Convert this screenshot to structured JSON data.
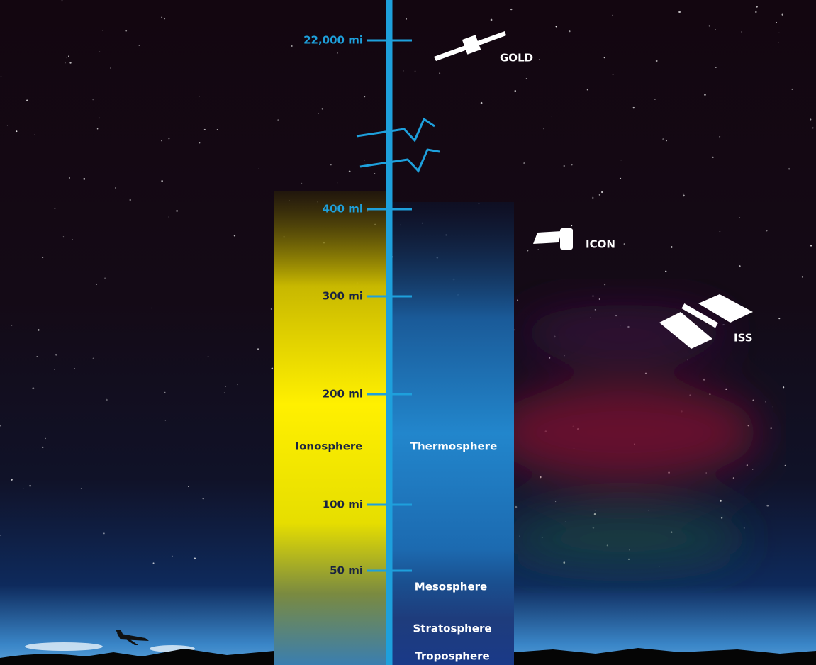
{
  "axis": {
    "ticks": [
      "22,000 mi",
      "400 mi",
      "300 mi",
      "200 mi",
      "100 mi",
      "50 mi"
    ]
  },
  "spacecraft": [
    "GOLD",
    "ICON",
    "ISS"
  ],
  "layers": {
    "ionosphere": "Ionosphere",
    "thermosphere": "Thermosphere",
    "mesosphere": "Mesosphere",
    "stratosphere": "Stratosphere",
    "troposphere": "Troposphere"
  }
}
